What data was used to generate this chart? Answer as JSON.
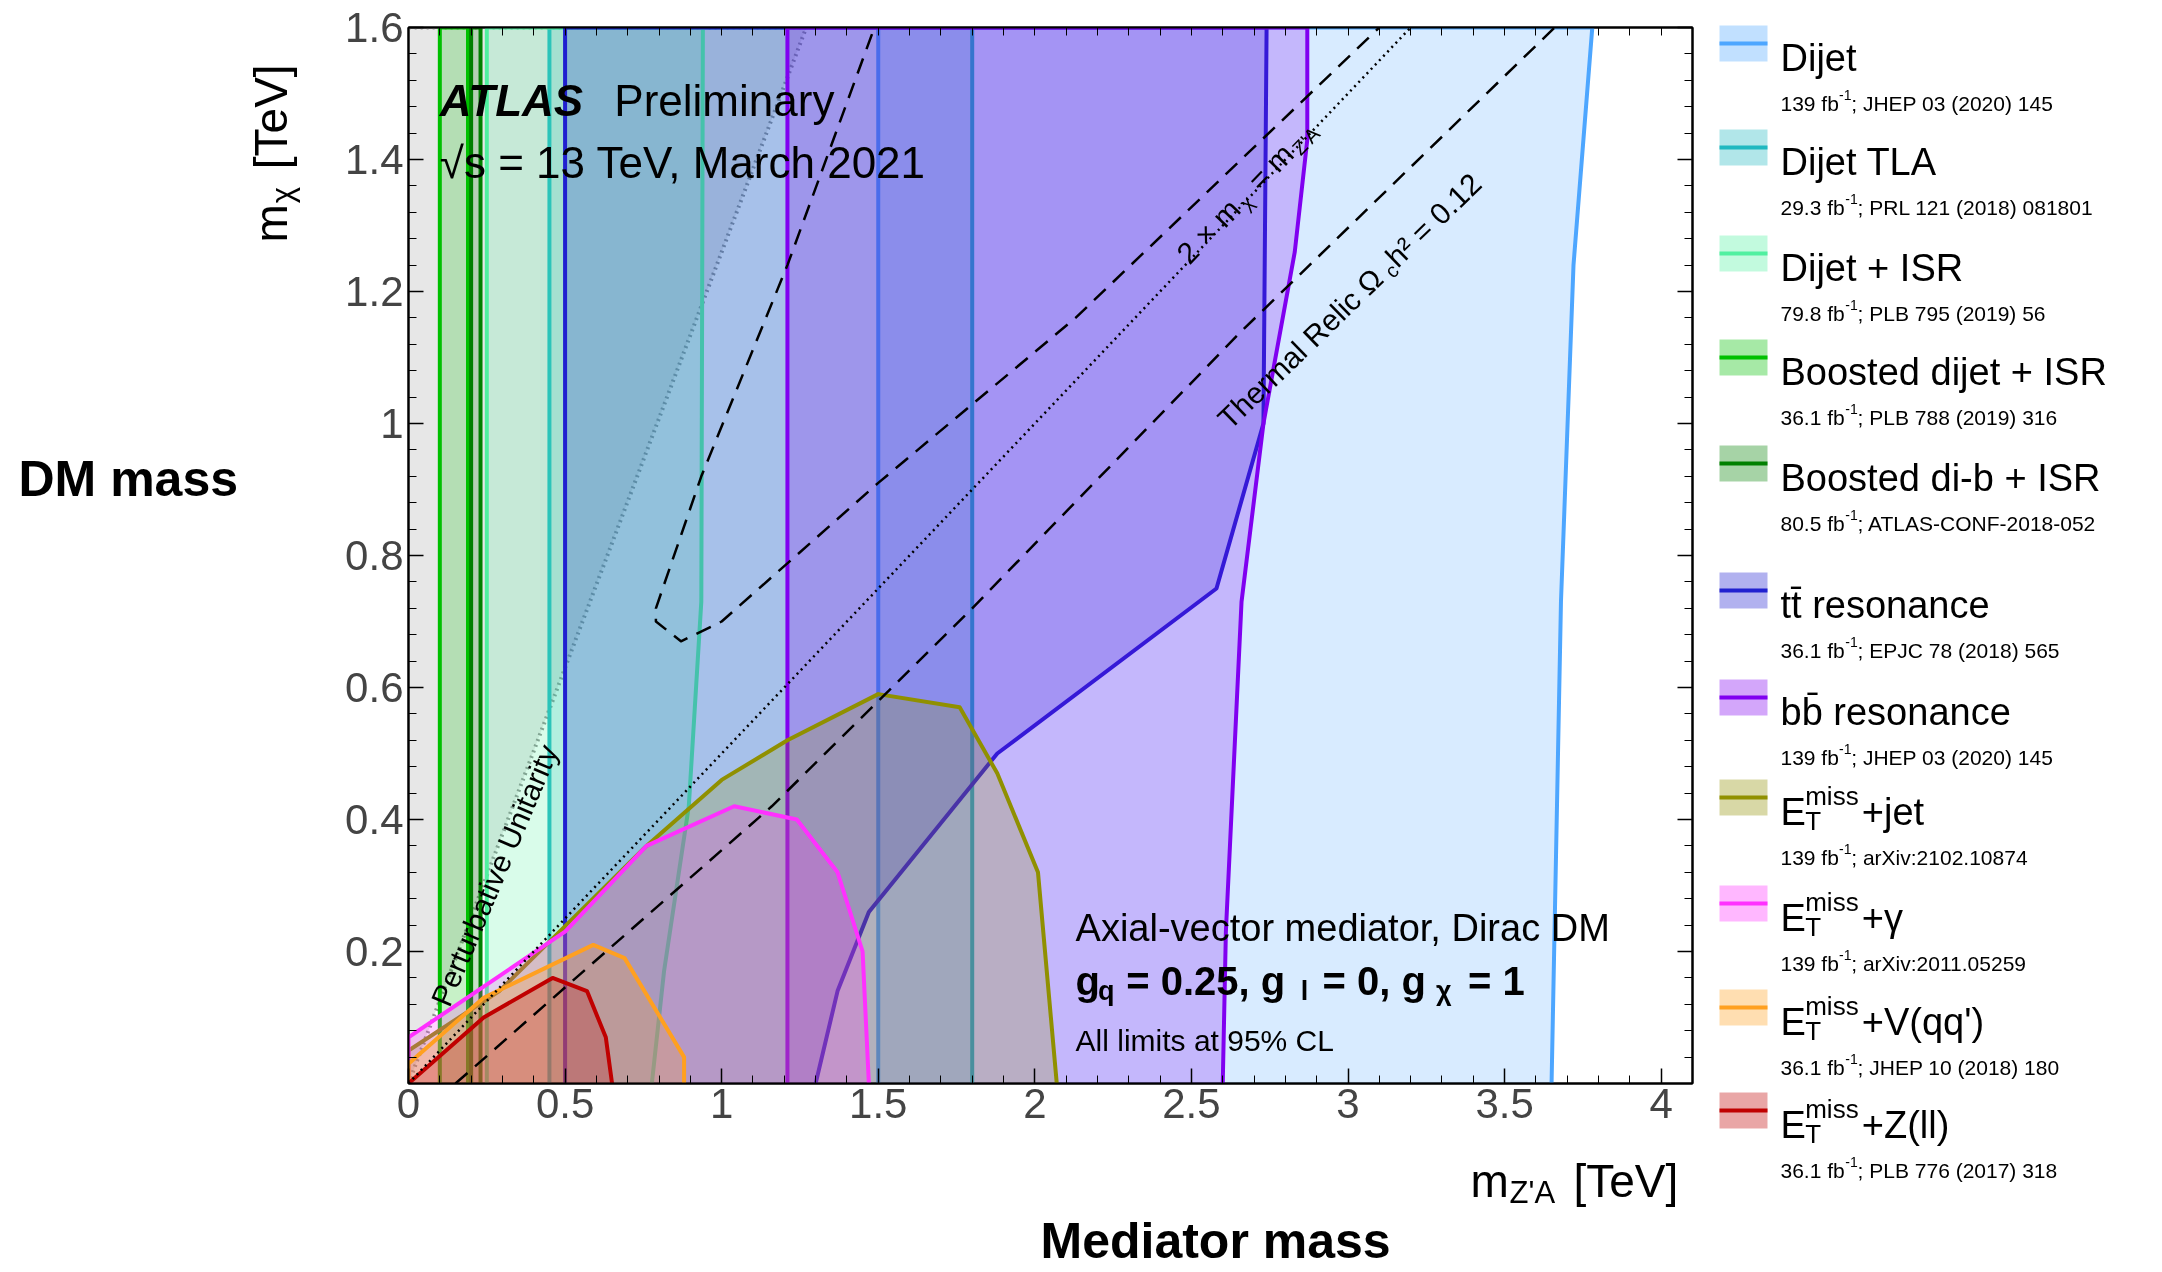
{
  "chart_data": {
    "type": "area",
    "xlabel": "m$_{Z'A}$ [TeV]",
    "ylabel": "m$_{χ}$ [TeV]",
    "xlim": [
      0,
      4.1
    ],
    "ylim": [
      0,
      1.6
    ],
    "xticks": [
      0,
      0.5,
      1,
      1.5,
      2,
      2.5,
      3,
      3.5,
      4
    ],
    "yticks": [
      0.2,
      0.4,
      0.6,
      0.8,
      1,
      1.2,
      1.4,
      1.6
    ],
    "grid": false,
    "legend": "right",
    "series": [
      {
        "color": "#909090",
        "line_style": "dotted",
        "x": [
          0,
          1.27,
          0
        ],
        "values": [
          0,
          1.6,
          1.6
        ]
      },
      {
        "name": "Dijet",
        "color": "#4da6ff",
        "x": [
          1.5,
          1.5,
          3.78,
          3.72,
          3.68,
          3.65
        ],
        "values": [
          0,
          1.6,
          1.6,
          1.24,
          0.73,
          0
        ]
      },
      {
        "name": "Dijet TLA",
        "color": "#20b8c0",
        "x": [
          0.45,
          0.45,
          1.8,
          1.8
        ],
        "values": [
          0,
          1.6,
          1.6,
          0
        ]
      },
      {
        "name": "Dijet + ISR",
        "color": "#50f0a0",
        "x": [
          0.25,
          0.25,
          0.94,
          0.935,
          0.895,
          0.816,
          0.777
        ],
        "values": [
          0,
          1.6,
          1.6,
          0.73,
          0.42,
          0.17,
          0
        ]
      },
      {
        "name": "Boosted dijet + ISR",
        "color": "#00c000",
        "x": [
          0.1,
          0.1,
          0.19,
          0.19
        ],
        "values": [
          0,
          1.6,
          1.6,
          0
        ]
      },
      {
        "name": "Boosted di-b + ISR",
        "color": "#008000",
        "x": [
          0.2,
          0.2,
          0.23,
          0.23
        ],
        "values": [
          0,
          1.6,
          1.6,
          0
        ]
      },
      {
        "name": "tt̄ resonance",
        "color": "#2020d0",
        "x": [
          0.5,
          0.5,
          2.74,
          2.73,
          2.58,
          1.88,
          1.47,
          1.37,
          1.3
        ],
        "values": [
          0,
          1.6,
          1.6,
          1.0,
          0.75,
          0.5,
          0.26,
          0.14,
          0
        ]
      },
      {
        "name": "bb̄ resonance",
        "color": "#8000f0",
        "x": [
          1.21,
          1.21,
          2.87,
          2.87,
          2.83,
          2.73,
          2.66,
          2.61,
          2.6
        ],
        "values": [
          0,
          1.6,
          1.6,
          1.43,
          1.26,
          1.0,
          0.73,
          0.23,
          0
        ]
      },
      {
        "name": "E$_{T}$$^{miss}$+jet",
        "color": "#909000",
        "x": [
          0,
          0,
          0.29,
          0.76,
          1.0,
          1.21,
          1.5,
          1.76,
          1.88,
          2.01,
          2.07
        ],
        "values": [
          0,
          0.05,
          0.14,
          0.36,
          0.46,
          0.52,
          0.59,
          0.57,
          0.47,
          0.32,
          0
        ]
      },
      {
        "name": "E$_{T}$$^{miss}$+γ",
        "color": "#ff30ff",
        "x": [
          0,
          0,
          0.5,
          0.76,
          1.04,
          1.24,
          1.37,
          1.45,
          1.47
        ],
        "values": [
          0,
          0.07,
          0.23,
          0.36,
          0.42,
          0.4,
          0.32,
          0.2,
          0
        ]
      },
      {
        "name": "E$_{T}$$^{miss}$+V(qq')",
        "color": "#ffa020",
        "x": [
          0,
          0,
          0.24,
          0.59,
          0.69,
          0.88,
          0.88
        ],
        "values": [
          0,
          0.03,
          0.13,
          0.21,
          0.19,
          0.04,
          0
        ]
      },
      {
        "name": "E$_{T}$$^{miss}$+Z(ll)",
        "color": "#c00000",
        "x": [
          0,
          0.24,
          0.46,
          0.57,
          0.63,
          0.65
        ],
        "values": [
          0,
          0.1,
          0.16,
          0.14,
          0.07,
          0
        ]
      },
      {
        "type": "line",
        "color": "#000000",
        "line_style": "dotted",
        "x": [
          0,
          3.2
        ],
        "values": [
          0,
          1.6
        ]
      },
      {
        "type": "line",
        "color": "#000000",
        "line_style": "dashed",
        "x": [
          0.15,
          1.16,
          1.8,
          2.66,
          3.66
        ],
        "values": [
          0,
          0.42,
          0.72,
          1.14,
          1.6
        ]
      },
      {
        "type": "line",
        "color": "#000000",
        "line_style": "dashed",
        "x": [
          1.48,
          1.21,
          0.935,
          0.79,
          0.79,
          0.87,
          1.0,
          1.5,
          2.13,
          3.1
        ],
        "values": [
          1.59,
          1.24,
          0.92,
          0.72,
          0.7,
          0.67,
          0.7,
          0.91,
          1.16,
          1.6
        ]
      }
    ],
    "annotations": [
      "ATLAS Preliminary",
      "√s = 13 TeV, March 2021",
      "Axial-vector mediator, Dirac DM",
      "g$_{q}$ = 0.25, g$_{l}$ = 0, g$_{χ}$ = 1",
      "All limits at 95% CL",
      "DM mass",
      "Mediator mass",
      "Perturbative Unitarity",
      "2 × m$_{χ}$ = m$_{Z'A}$",
      "Thermal Relic Ω$_{c}$h² = 0.12",
      "139 fb$^{-1}$; JHEP 03 (2020) 145",
      "29.3 fb$^{-1}$; PRL 121 (2018) 081801",
      "79.8 fb$^{-1}$; PLB 795 (2019) 56",
      "36.1 fb$^{-1}$; PLB 788 (2019) 316",
      "80.5 fb$^{-1}$; ATLAS-CONF-2018-052",
      "36.1 fb$^{-1}$; EPJC 78 (2018) 565",
      "139 fb$^{-1}$; JHEP 03 (2020) 145",
      "139 fb$^{-1}$; arXiv:2102.10874",
      "139 fb$^{-1}$; arXiv:2011.05259",
      "36.1 fb$^{-1}$; JHEP 10 (2018) 180",
      "36.1 fb$^{-1}$; PLB 776 (2017) 318"
    ]
  }
}
